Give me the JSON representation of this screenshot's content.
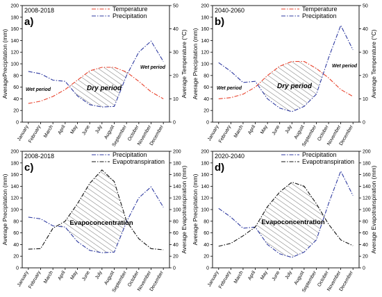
{
  "chart_data": [
    {
      "type": "line",
      "panel_label": "a)",
      "period_label": "2008-2018",
      "categories": [
        "January",
        "February",
        "March",
        "April",
        "May",
        "June",
        "July",
        "August",
        "September",
        "October",
        "November",
        "December"
      ],
      "ylabel_left": "AveragePrecipitation (mm)",
      "ylabel_right": "Average Temperature (°C)",
      "ylim_left": [
        0,
        200
      ],
      "ylim_right": [
        0,
        50
      ],
      "yticks_left": [
        "0",
        "20",
        "40",
        "60",
        "80",
        "100",
        "120",
        "140",
        "160",
        "180",
        "200"
      ],
      "yticks_right": [
        "0",
        "10",
        "20",
        "30",
        "40",
        "50"
      ],
      "series": [
        {
          "name": "Temperature",
          "axis": "right",
          "color": "#e8402a",
          "dash": "6,2,1.5,2",
          "values": [
            8,
            9,
            11,
            14,
            18,
            22,
            23.5,
            23.5,
            21.5,
            17.5,
            13,
            10
          ]
        },
        {
          "name": "Precipitation",
          "axis": "left",
          "color": "#2e3aa0",
          "dash": "6,2,1.5,2",
          "values": [
            87,
            83,
            72,
            70,
            45,
            30,
            26,
            27,
            80,
            120,
            139,
            104
          ]
        }
      ],
      "annotations": [
        {
          "text": "Dry period",
          "kind": "inner"
        },
        {
          "text": "Wet period",
          "kind": "period",
          "side": "left"
        },
        {
          "text": "Wet period",
          "kind": "period",
          "side": "right"
        }
      ]
    },
    {
      "type": "line",
      "panel_label": "b)",
      "period_label": "2040-2060",
      "categories": [
        "January",
        "February",
        "March",
        "April",
        "May",
        "June",
        "July",
        "August",
        "September",
        "October",
        "November",
        "December"
      ],
      "ylabel_left": "Average Precipitation (mm)",
      "ylabel_right": "Average Temperature (°C)",
      "ylim_left": [
        0,
        200
      ],
      "ylim_right": [
        0,
        50
      ],
      "yticks_left": [
        "0",
        "20",
        "40",
        "60",
        "80",
        "100",
        "120",
        "140",
        "160",
        "180",
        "200"
      ],
      "yticks_right": [
        "0",
        "10",
        "20",
        "30",
        "40",
        "50"
      ],
      "series": [
        {
          "name": "Temperature",
          "axis": "right",
          "color": "#e8402a",
          "dash": "6,2,1.5,2",
          "values": [
            10,
            10.5,
            12,
            15,
            20,
            24,
            26,
            26,
            23,
            19,
            14,
            11
          ]
        },
        {
          "name": "Precipitation",
          "axis": "left",
          "color": "#2e3aa0",
          "dash": "6,2,1.5,2",
          "values": [
            102,
            87,
            68,
            70,
            40,
            24,
            18,
            27,
            48,
            110,
            166,
            124
          ]
        }
      ],
      "annotations": [
        {
          "text": "Dry period",
          "kind": "inner"
        },
        {
          "text": "Wet period",
          "kind": "period",
          "side": "left"
        },
        {
          "text": "Wet period",
          "kind": "period",
          "side": "right"
        }
      ]
    },
    {
      "type": "line",
      "panel_label": "c)",
      "period_label": "2008-2018",
      "categories": [
        "January",
        "February",
        "March",
        "April",
        "May",
        "June",
        "July",
        "August",
        "September",
        "October",
        "November",
        "December"
      ],
      "ylabel_left": "Average Precipitation (mm)",
      "ylabel_right": "Average Evapotranspiration (mm)",
      "ylim_left": [
        0,
        200
      ],
      "ylim_right": [
        0,
        200
      ],
      "yticks_left": [
        "0",
        "20",
        "40",
        "60",
        "80",
        "100",
        "120",
        "140",
        "160",
        "180",
        "200"
      ],
      "yticks_right": [
        "0",
        "20",
        "40",
        "60",
        "80",
        "100",
        "120",
        "140",
        "160",
        "180",
        "200"
      ],
      "series": [
        {
          "name": "Precipitation",
          "axis": "left",
          "color": "#2e3aa0",
          "dash": "6,2,1.5,2",
          "values": [
            87,
            84,
            72,
            70,
            45,
            30,
            26,
            27,
            79,
            120,
            139,
            104
          ]
        },
        {
          "name": "Evapotranspiration",
          "axis": "right",
          "color": "#111111",
          "dash": "6,2,1.5,2",
          "values": [
            32,
            33,
            68,
            80,
            110,
            145,
            168,
            148,
            80,
            50,
            33,
            31
          ]
        }
      ],
      "annotations": [
        {
          "text": "Evapoconcentration",
          "kind": "inner2"
        }
      ]
    },
    {
      "type": "line",
      "panel_label": "d)",
      "period_label": "2020-2040",
      "categories": [
        "January",
        "February",
        "March",
        "April",
        "May",
        "June",
        "July",
        "August",
        "September",
        "October",
        "November",
        "December"
      ],
      "ylabel_left": "Average Precipitation (mm)",
      "ylabel_right": "Average Evapotranspiration (mm)",
      "ylim_left": [
        0,
        200
      ],
      "ylim_right": [
        0,
        200
      ],
      "yticks_left": [
        "0",
        "20",
        "40",
        "60",
        "80",
        "100",
        "120",
        "140",
        "160",
        "180",
        "200"
      ],
      "yticks_right": [
        "0",
        "20",
        "40",
        "60",
        "80",
        "100",
        "120",
        "140",
        "160",
        "180",
        "200"
      ],
      "series": [
        {
          "name": "Precipitation",
          "axis": "left",
          "color": "#2e3aa0",
          "dash": "6,2,1.5,2",
          "values": [
            102,
            87,
            68,
            70,
            40,
            24,
            18,
            27,
            48,
            110,
            166,
            124
          ]
        },
        {
          "name": "Evapotranspiration",
          "axis": "right",
          "color": "#111111",
          "dash": "6,2,1.5,2",
          "values": [
            37,
            42,
            55,
            70,
            105,
            130,
            147,
            140,
            110,
            75,
            48,
            38
          ]
        }
      ],
      "annotations": [
        {
          "text": "Evapoconcentration",
          "kind": "inner2"
        }
      ]
    }
  ]
}
